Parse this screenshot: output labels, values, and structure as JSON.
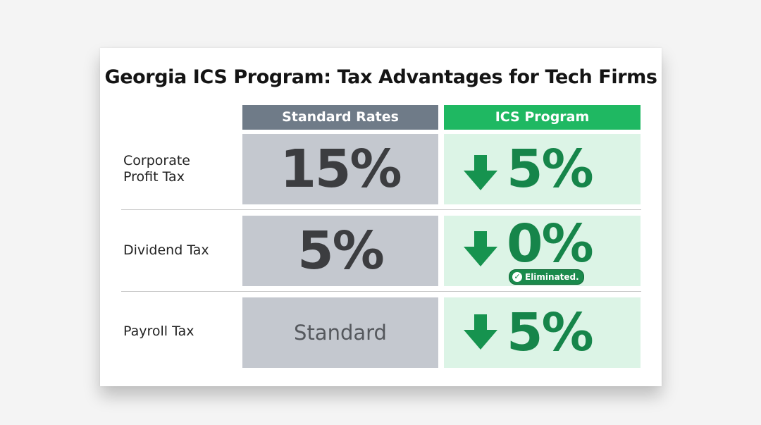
{
  "title": "Georgia ICS Program: Tax Advantages for Tech Firms",
  "columns": {
    "standard": "Standard Rates",
    "ics": "ICS Program"
  },
  "rows": [
    {
      "label_line1": "Corporate",
      "label_line2": "Profit Tax",
      "standard": "15%",
      "ics": "5%"
    },
    {
      "label_line1": "Dividend Tax",
      "standard": "5%",
      "ics": "0%",
      "badge": "Eliminated."
    },
    {
      "label_line1": "Payroll Tax",
      "standard": "Standard",
      "ics": "5%"
    }
  ],
  "icons": {
    "down": "arrow-down-icon",
    "check": "check-circle-icon"
  },
  "colors": {
    "standard_head": "#6f7b88",
    "ics_head": "#1fb862",
    "ics_text": "#16854a"
  }
}
